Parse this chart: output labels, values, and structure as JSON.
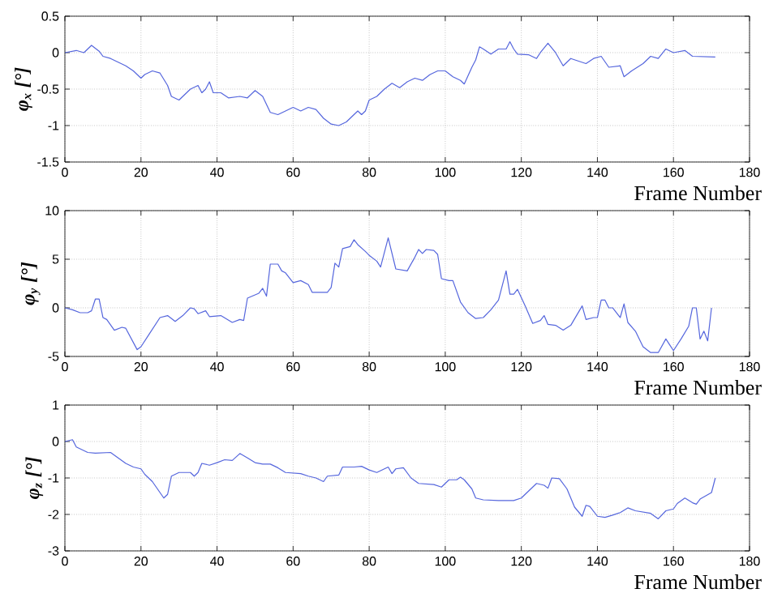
{
  "chart_data": [
    {
      "type": "line",
      "ylabel": "φ$_{x}$ [°]",
      "xlabel": "Frame Number",
      "xlim": [
        0,
        180
      ],
      "xticks": [
        0,
        20,
        40,
        60,
        80,
        100,
        120,
        140,
        160,
        180
      ],
      "ylim": [
        -1.5,
        0.5
      ],
      "yticks": [
        -1.5,
        -1,
        -0.5,
        0,
        0.5
      ],
      "grid": true,
      "line_style": "solid",
      "series": [
        {
          "color": "#5566dd",
          "x": [
            0,
            3,
            5,
            7,
            9,
            10,
            12,
            14,
            16,
            18,
            20,
            21,
            23,
            25,
            27,
            28,
            30,
            32,
            33,
            35,
            36,
            37,
            38,
            39,
            41,
            43,
            46,
            48,
            50,
            52,
            54,
            56,
            58,
            60,
            62,
            64,
            66,
            68,
            70,
            72,
            74,
            75,
            77,
            78,
            79,
            80,
            82,
            84,
            86,
            88,
            90,
            92,
            94,
            96,
            98,
            100,
            102,
            104,
            105,
            107,
            108,
            109,
            110,
            112,
            114,
            116,
            117,
            118,
            119,
            122,
            124,
            125,
            127,
            129,
            131,
            133,
            137,
            139,
            141,
            143,
            146,
            147,
            149,
            152,
            154,
            156,
            158,
            160,
            163,
            165,
            171
          ],
          "values": [
            0,
            0.03,
            0,
            0.1,
            0.02,
            -0.05,
            -0.08,
            -0.13,
            -0.18,
            -0.25,
            -0.35,
            -0.3,
            -0.25,
            -0.28,
            -0.45,
            -0.6,
            -0.65,
            -0.55,
            -0.5,
            -0.45,
            -0.55,
            -0.5,
            -0.4,
            -0.55,
            -0.55,
            -0.62,
            -0.6,
            -0.62,
            -0.52,
            -0.6,
            -0.82,
            -0.85,
            -0.8,
            -0.75,
            -0.8,
            -0.75,
            -0.78,
            -0.9,
            -0.98,
            -1.0,
            -0.95,
            -0.9,
            -0.8,
            -0.85,
            -0.8,
            -0.65,
            -0.6,
            -0.5,
            -0.42,
            -0.48,
            -0.4,
            -0.35,
            -0.38,
            -0.3,
            -0.25,
            -0.25,
            -0.33,
            -0.38,
            -0.43,
            -0.2,
            -0.1,
            0.08,
            0.05,
            -0.02,
            0.05,
            0.05,
            0.15,
            0.05,
            -0.02,
            -0.03,
            -0.08,
            0.0,
            0.13,
            0.0,
            -0.18,
            -0.08,
            -0.15,
            -0.08,
            -0.05,
            -0.2,
            -0.18,
            -0.33,
            -0.25,
            -0.15,
            -0.05,
            -0.08,
            0.05,
            0.0,
            0.03,
            -0.05,
            -0.06
          ]
        }
      ]
    },
    {
      "type": "line",
      "ylabel": "φ$_{y}$ [°]",
      "xlabel": "Frame Number",
      "xlim": [
        0,
        180
      ],
      "xticks": [
        0,
        20,
        40,
        60,
        80,
        100,
        120,
        140,
        160,
        180
      ],
      "ylim": [
        -5,
        10
      ],
      "yticks": [
        -5,
        0,
        5,
        10
      ],
      "grid": true,
      "line_style": "solid",
      "series": [
        {
          "color": "#5566dd",
          "x": [
            0,
            2,
            4,
            6,
            7,
            8,
            9,
            10,
            11,
            13,
            15,
            16,
            19,
            20,
            22,
            25,
            27,
            29,
            31,
            33,
            34,
            35,
            37,
            38,
            41,
            44,
            46,
            47,
            48,
            51,
            52,
            53,
            54,
            56,
            57,
            58,
            60,
            62,
            64,
            65,
            69,
            70,
            71,
            72,
            73,
            75,
            76,
            77,
            79,
            80,
            82,
            83,
            85,
            87,
            90,
            92,
            93,
            94,
            95,
            97,
            98,
            99,
            101,
            102,
            104,
            106,
            108,
            110,
            112,
            114,
            116,
            117,
            118,
            119,
            121,
            123,
            125,
            126,
            127,
            129,
            131,
            133,
            136,
            137,
            139,
            140,
            141,
            142,
            143,
            144,
            146,
            147,
            148,
            150,
            152,
            154,
            156,
            158,
            159,
            160,
            162,
            164,
            165,
            166,
            167,
            168,
            169,
            170
          ],
          "values": [
            0,
            -0.2,
            -0.5,
            -0.5,
            -0.3,
            0.9,
            0.9,
            -1.0,
            -1.2,
            -2.3,
            -2.0,
            -2.1,
            -4.3,
            -4.0,
            -2.8,
            -1.0,
            -0.8,
            -1.4,
            -0.8,
            0.0,
            -0.1,
            -0.6,
            -0.3,
            -0.9,
            -0.8,
            -1.5,
            -1.2,
            -1.3,
            1.0,
            1.5,
            2.0,
            1.2,
            4.5,
            4.5,
            3.8,
            3.6,
            2.6,
            2.8,
            2.4,
            1.6,
            1.6,
            2.1,
            4.6,
            4.2,
            6.1,
            6.3,
            7.0,
            6.5,
            5.8,
            5.4,
            4.8,
            4.2,
            7.2,
            4.0,
            3.8,
            5.2,
            6.0,
            5.6,
            6.0,
            5.9,
            5.5,
            3.0,
            2.8,
            2.8,
            0.6,
            -0.5,
            -1.1,
            -1.0,
            -0.2,
            0.8,
            3.8,
            1.4,
            1.4,
            1.9,
            0.2,
            -1.6,
            -1.3,
            -0.8,
            -1.7,
            -1.8,
            -2.3,
            -1.8,
            0.2,
            -1.2,
            -1.0,
            -1.0,
            0.8,
            0.8,
            0.0,
            0.0,
            -1.0,
            0.4,
            -1.5,
            -2.4,
            -4.0,
            -4.6,
            -4.6,
            -3.2,
            -3.8,
            -4.4,
            -3.2,
            -1.9,
            0.0,
            0.0,
            -3.2,
            -2.4,
            -3.4,
            0.0
          ]
        }
      ]
    },
    {
      "type": "line",
      "ylabel": "φ$_{z}$ [°]",
      "xlabel": "Frame Number",
      "xlim": [
        0,
        180
      ],
      "xticks": [
        0,
        20,
        40,
        60,
        80,
        100,
        120,
        140,
        160,
        180
      ],
      "ylim": [
        -3,
        1
      ],
      "yticks": [
        -3,
        -2,
        -1,
        0,
        1
      ],
      "grid": true,
      "line_style": "solid",
      "series": [
        {
          "color": "#5566dd",
          "x": [
            0,
            2,
            3,
            6,
            8,
            12,
            14,
            16,
            18,
            20,
            21,
            23,
            26,
            27,
            28,
            30,
            33,
            34,
            35,
            36,
            38,
            40,
            42,
            44,
            46,
            48,
            50,
            52,
            54,
            56,
            58,
            62,
            64,
            66,
            68,
            69,
            72,
            73,
            76,
            78,
            80,
            82,
            84,
            85,
            86,
            87,
            89,
            91,
            93,
            97,
            99,
            101,
            103,
            104,
            105,
            107,
            108,
            110,
            114,
            118,
            120,
            122,
            124,
            126,
            127,
            128,
            130,
            132,
            134,
            136,
            137,
            138,
            140,
            142,
            144,
            146,
            148,
            150,
            154,
            156,
            158,
            160,
            161,
            163,
            165,
            166,
            167,
            170,
            171
          ],
          "values": [
            0,
            0.05,
            -0.15,
            -0.3,
            -0.32,
            -0.3,
            -0.45,
            -0.6,
            -0.7,
            -0.75,
            -0.9,
            -1.1,
            -1.55,
            -1.45,
            -0.95,
            -0.85,
            -0.85,
            -0.95,
            -0.85,
            -0.6,
            -0.65,
            -0.58,
            -0.5,
            -0.52,
            -0.33,
            -0.45,
            -0.58,
            -0.62,
            -0.62,
            -0.72,
            -0.85,
            -0.88,
            -0.95,
            -1.0,
            -1.1,
            -0.95,
            -0.92,
            -0.7,
            -0.7,
            -0.68,
            -0.78,
            -0.85,
            -0.75,
            -0.7,
            -0.88,
            -0.75,
            -0.72,
            -1.0,
            -1.15,
            -1.18,
            -1.25,
            -1.05,
            -1.05,
            -0.98,
            -1.05,
            -1.3,
            -1.55,
            -1.6,
            -1.62,
            -1.62,
            -1.55,
            -1.35,
            -1.15,
            -1.2,
            -1.28,
            -1.0,
            -1.02,
            -1.3,
            -1.8,
            -2.05,
            -1.75,
            -1.78,
            -2.05,
            -2.08,
            -2.02,
            -1.95,
            -1.82,
            -1.9,
            -1.97,
            -2.12,
            -1.9,
            -1.85,
            -1.7,
            -1.55,
            -1.68,
            -1.72,
            -1.58,
            -1.4,
            -1.0
          ]
        }
      ]
    }
  ]
}
